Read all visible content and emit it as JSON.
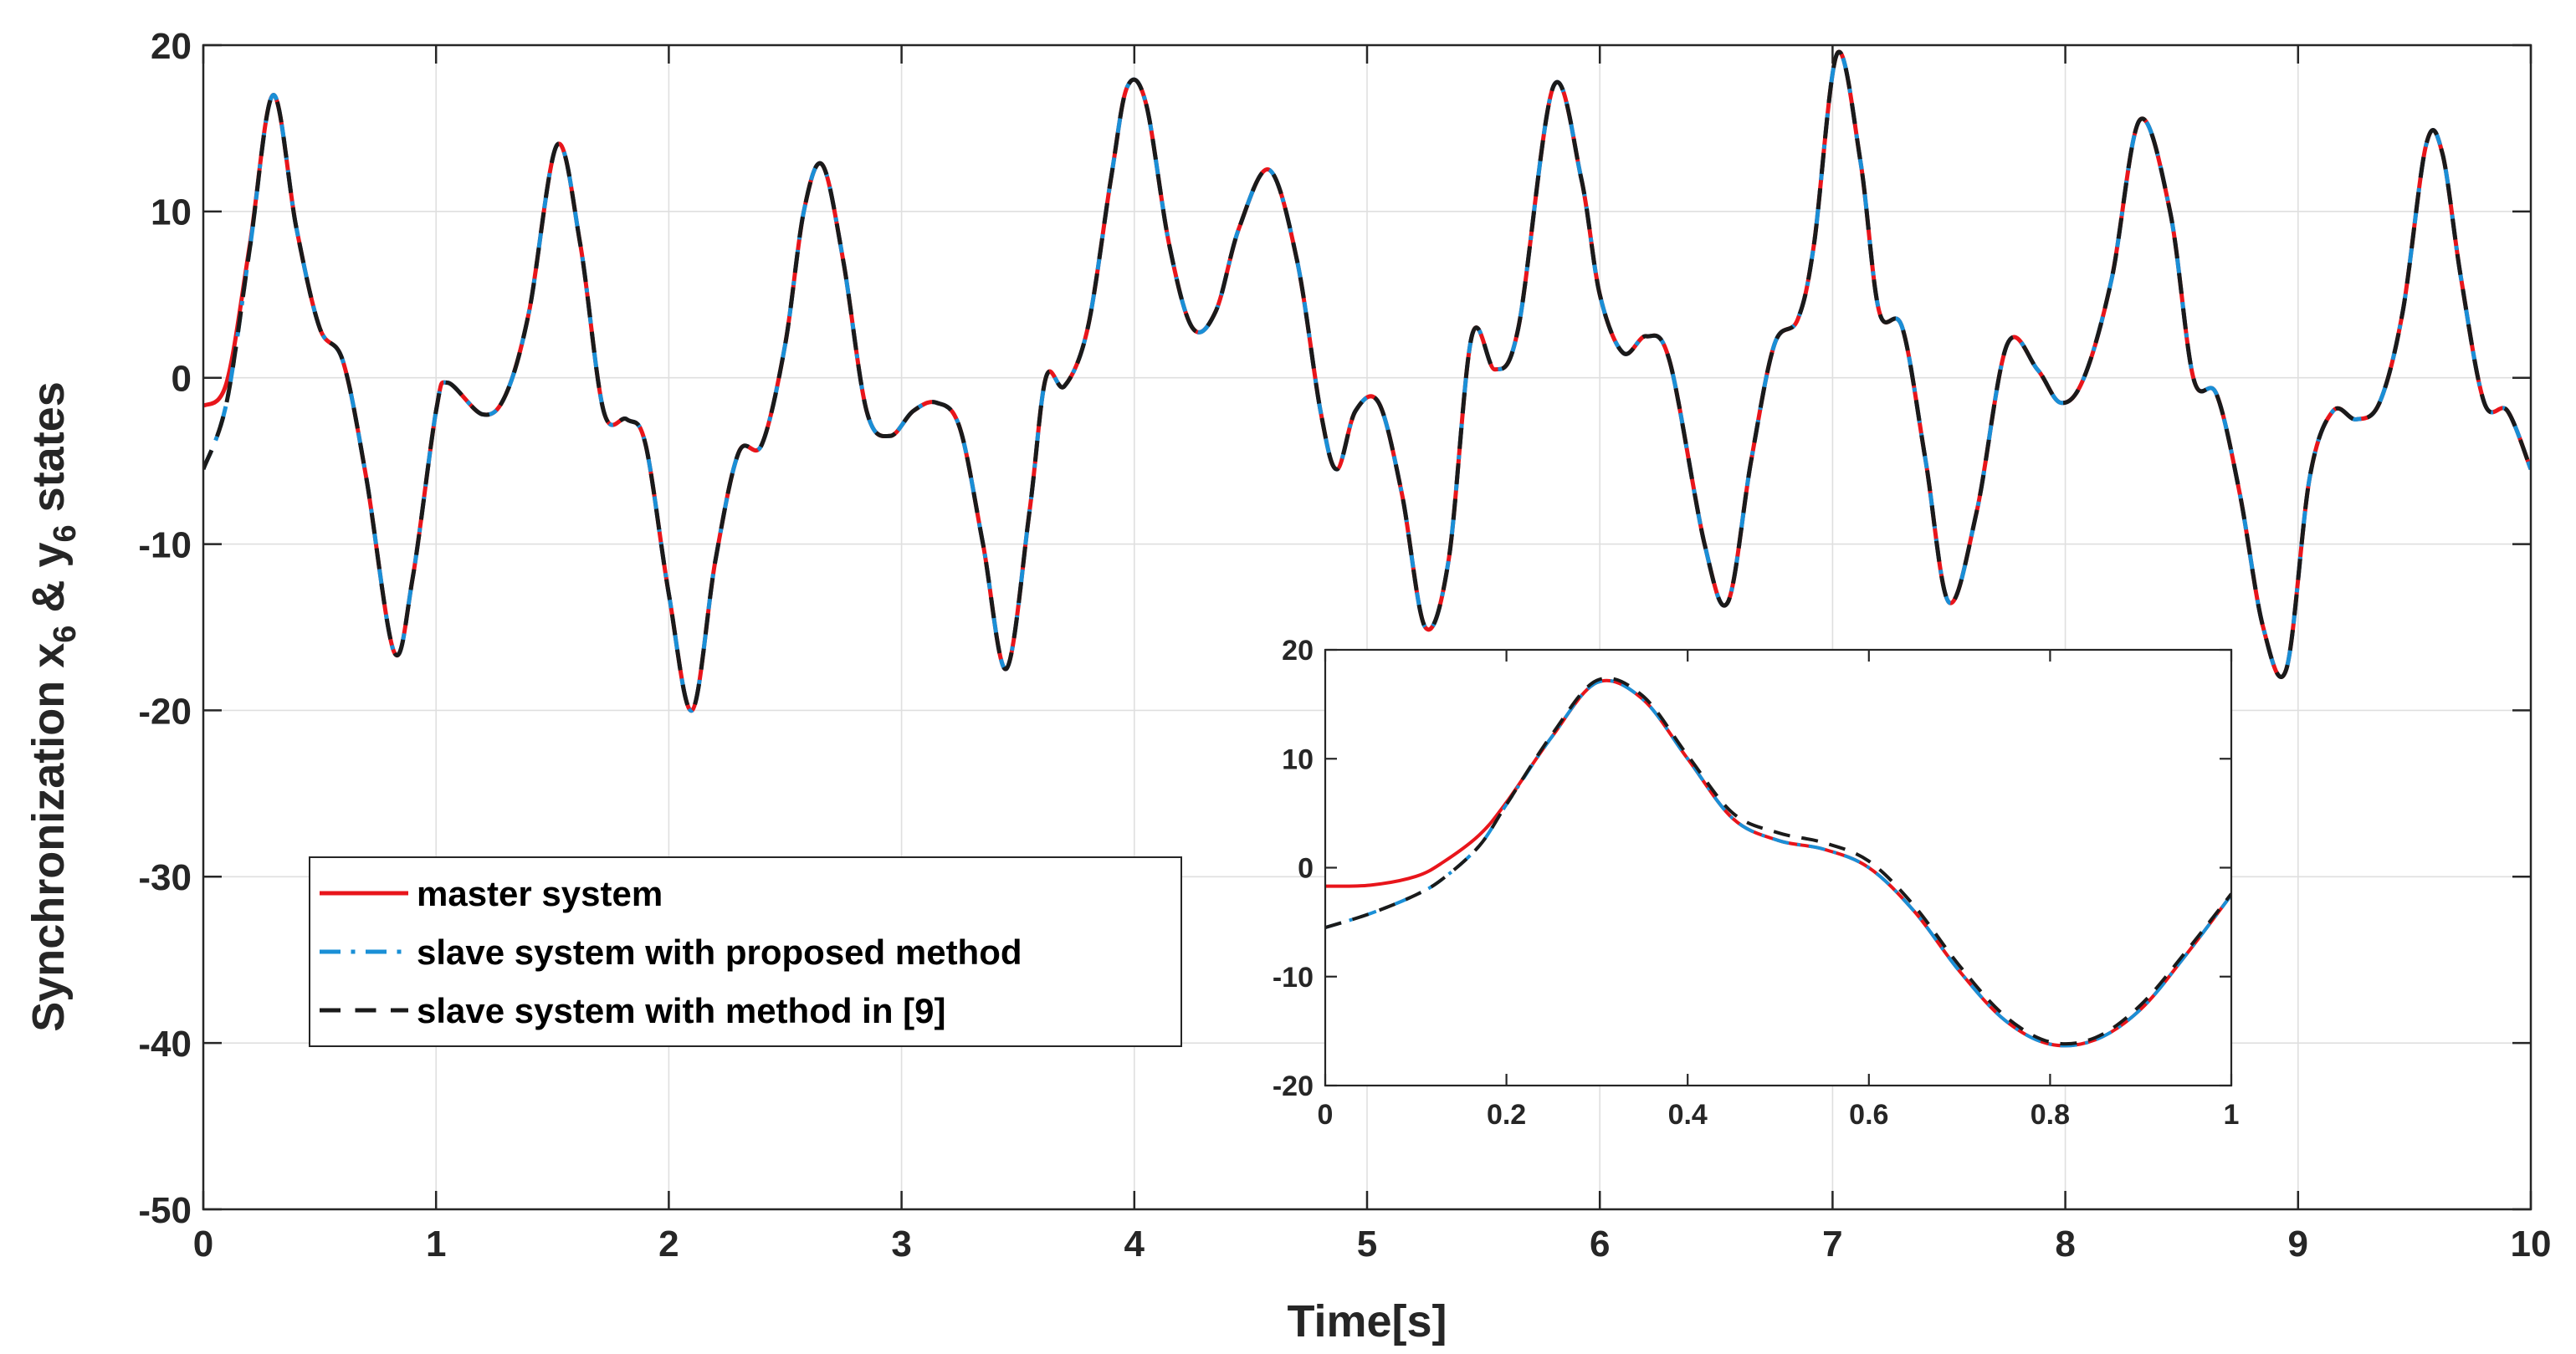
{
  "chart_data": [
    {
      "type": "line",
      "xlabel": "Time[s]",
      "ylabel": "Synchronization",
      "ylabel_vars": [
        "x",
        "6",
        "&",
        "y",
        "6",
        "states"
      ],
      "xlim": [
        0,
        10
      ],
      "ylim": [
        -50,
        20
      ],
      "xticks": [
        0,
        1,
        2,
        3,
        4,
        5,
        6,
        7,
        8,
        9,
        10
      ],
      "yticks": [
        -50,
        -40,
        -30,
        -20,
        -10,
        0,
        10,
        20
      ],
      "xtick_labels": [
        "0",
        "1",
        "2",
        "3",
        "4",
        "5",
        "6",
        "7",
        "8",
        "9",
        "10"
      ],
      "ytick_labels": [
        "-50",
        "-40",
        "-30",
        "-20",
        "-10",
        "0",
        "10",
        "20"
      ],
      "grid": true,
      "legend_position": "lower-left",
      "series": [
        {
          "name": "master system",
          "color": "#e8151b",
          "style": "solid",
          "x": [
            0,
            0.1,
            0.2,
            0.3,
            0.4,
            0.5,
            0.6,
            0.7,
            0.82,
            0.9,
            1.0,
            1.05,
            1.2,
            1.3,
            1.4,
            1.52,
            1.62,
            1.72,
            1.82,
            1.9,
            2.0,
            2.1,
            2.2,
            2.3,
            2.4,
            2.5,
            2.58,
            2.66,
            2.75,
            2.85,
            2.95,
            3.05,
            3.15,
            3.25,
            3.35,
            3.45,
            3.55,
            3.62,
            3.7,
            3.8,
            3.9,
            3.97,
            4.05,
            4.15,
            4.25,
            4.35,
            4.45,
            4.58,
            4.7,
            4.8,
            4.87,
            4.95,
            5.05,
            5.15,
            5.25,
            5.35,
            5.45,
            5.55,
            5.65,
            5.8,
            5.92,
            6.0,
            6.1,
            6.2,
            6.3,
            6.45,
            6.55,
            6.65,
            6.75,
            6.85,
            6.92,
            7.02,
            7.12,
            7.2,
            7.3,
            7.4,
            7.5,
            7.62,
            7.75,
            7.88,
            7.98,
            8.08,
            8.2,
            8.32,
            8.45,
            8.55,
            8.65,
            8.75,
            8.85,
            8.95,
            9.05,
            9.15,
            9.25,
            9.35,
            9.45,
            9.55,
            9.62,
            9.7,
            9.8,
            9.9,
            10.0
          ],
          "values": [
            -1.7,
            -0.3,
            8.0,
            17.0,
            9.0,
            3.0,
            1.0,
            -6.0,
            -16.5,
            -12.0,
            -2.0,
            -0.3,
            -2.2,
            -1.0,
            4.0,
            14.0,
            8.0,
            -2.0,
            -2.5,
            -4.0,
            -13.0,
            -20.0,
            -11.0,
            -4.5,
            -4.0,
            2.0,
            10.0,
            12.8,
            7.0,
            -2.0,
            -3.5,
            -2.0,
            -1.5,
            -3.0,
            -10.0,
            -17.5,
            -8.0,
            0.0,
            -0.5,
            3.0,
            12.0,
            17.5,
            16.5,
            8.0,
            3.0,
            4.0,
            9.0,
            12.5,
            7.0,
            -2.0,
            -5.5,
            -2.0,
            -1.5,
            -7.0,
            -15.0,
            -11.0,
            2.5,
            0.5,
            3.0,
            17.5,
            12.0,
            5.0,
            1.5,
            2.5,
            1.0,
            -10.0,
            -13.5,
            -5.0,
            2.0,
            3.5,
            8.0,
            19.5,
            13.0,
            4.0,
            3.0,
            -5.0,
            -13.5,
            -8.0,
            2.0,
            0.5,
            -1.5,
            0.0,
            6.0,
            15.5,
            10.0,
            0.0,
            -1.0,
            -7.0,
            -15.0,
            -17.5,
            -6.0,
            -2.0,
            -2.5,
            -1.5,
            4.0,
            14.0,
            13.5,
            6.0,
            -1.5,
            -2.0,
            -5.5
          ]
        },
        {
          "name": "slave system with proposed method",
          "color": "#1a8fd6",
          "style": "dashdot",
          "x": [
            0,
            0.1,
            0.2,
            0.3,
            0.4,
            0.5,
            0.6,
            0.7,
            0.82,
            0.9,
            1.0,
            1.05,
            1.2,
            1.3,
            1.4,
            1.52,
            1.62,
            1.72,
            1.82,
            1.9,
            2.0,
            2.1,
            2.2,
            2.3,
            2.4,
            2.5,
            2.58,
            2.66,
            2.75,
            2.85,
            2.95,
            3.05,
            3.15,
            3.25,
            3.35,
            3.45,
            3.55,
            3.62,
            3.7,
            3.8,
            3.9,
            3.97,
            4.05,
            4.15,
            4.25,
            4.35,
            4.45,
            4.58,
            4.7,
            4.8,
            4.87,
            4.95,
            5.05,
            5.15,
            5.25,
            5.35,
            5.45,
            5.55,
            5.65,
            5.8,
            5.92,
            6.0,
            6.1,
            6.2,
            6.3,
            6.45,
            6.55,
            6.65,
            6.75,
            6.85,
            6.92,
            7.02,
            7.12,
            7.2,
            7.3,
            7.4,
            7.5,
            7.62,
            7.75,
            7.88,
            7.98,
            8.08,
            8.2,
            8.32,
            8.45,
            8.55,
            8.65,
            8.75,
            8.85,
            8.95,
            9.05,
            9.15,
            9.25,
            9.35,
            9.45,
            9.55,
            9.62,
            9.7,
            9.8,
            9.9,
            10.0
          ],
          "values": [
            -5.5,
            -1.5,
            7.8,
            17.0,
            9.0,
            3.0,
            1.0,
            -6.0,
            -16.5,
            -12.0,
            -2.0,
            -0.3,
            -2.2,
            -1.0,
            4.0,
            14.0,
            8.0,
            -2.0,
            -2.5,
            -4.0,
            -13.0,
            -20.0,
            -11.0,
            -4.5,
            -4.0,
            2.0,
            10.0,
            12.8,
            7.0,
            -2.0,
            -3.5,
            -2.0,
            -1.5,
            -3.0,
            -10.0,
            -17.5,
            -8.0,
            0.0,
            -0.5,
            3.0,
            12.0,
            17.5,
            16.5,
            8.0,
            3.0,
            4.0,
            9.0,
            12.5,
            7.0,
            -2.0,
            -5.5,
            -2.0,
            -1.5,
            -7.0,
            -15.0,
            -11.0,
            2.5,
            0.5,
            3.0,
            17.5,
            12.0,
            5.0,
            1.5,
            2.5,
            1.0,
            -10.0,
            -13.5,
            -5.0,
            2.0,
            3.5,
            8.0,
            19.5,
            13.0,
            4.0,
            3.0,
            -5.0,
            -13.5,
            -8.0,
            2.0,
            0.5,
            -1.5,
            0.0,
            6.0,
            15.5,
            10.0,
            0.0,
            -1.0,
            -7.0,
            -15.0,
            -17.5,
            -6.0,
            -2.0,
            -2.5,
            -1.5,
            4.0,
            14.0,
            13.5,
            6.0,
            -1.5,
            -2.0,
            -5.5
          ]
        },
        {
          "name": "slave system with method in [9]",
          "color": "#1a1a1a",
          "style": "dashed",
          "x": [
            0,
            0.1,
            0.2,
            0.3,
            0.4,
            0.5,
            0.6,
            0.7,
            0.82,
            0.9,
            1.0,
            1.05,
            1.2,
            1.3,
            1.4,
            1.52,
            1.62,
            1.72,
            1.82,
            1.9,
            2.0,
            2.1,
            2.2,
            2.3,
            2.4,
            2.5,
            2.58,
            2.66,
            2.75,
            2.85,
            2.95,
            3.05,
            3.15,
            3.25,
            3.35,
            3.45,
            3.55,
            3.62,
            3.7,
            3.8,
            3.9,
            3.97,
            4.05,
            4.15,
            4.25,
            4.35,
            4.45,
            4.58,
            4.7,
            4.8,
            4.87,
            4.95,
            5.05,
            5.15,
            5.25,
            5.35,
            5.45,
            5.55,
            5.65,
            5.8,
            5.92,
            6.0,
            6.1,
            6.2,
            6.3,
            6.45,
            6.55,
            6.65,
            6.75,
            6.85,
            6.92,
            7.02,
            7.12,
            7.2,
            7.3,
            7.4,
            7.5,
            7.62,
            7.75,
            7.88,
            7.98,
            8.08,
            8.2,
            8.32,
            8.45,
            8.55,
            8.65,
            8.75,
            8.85,
            8.95,
            9.05,
            9.15,
            9.25,
            9.35,
            9.45,
            9.55,
            9.62,
            9.7,
            9.8,
            9.9,
            10.0
          ],
          "values": [
            -5.5,
            -1.5,
            7.8,
            17.0,
            9.0,
            3.0,
            1.0,
            -6.0,
            -16.5,
            -12.0,
            -2.0,
            -0.3,
            -2.2,
            -1.0,
            4.0,
            14.0,
            8.0,
            -2.0,
            -2.5,
            -4.0,
            -13.0,
            -20.0,
            -11.0,
            -4.5,
            -4.0,
            2.0,
            10.0,
            12.8,
            7.0,
            -2.0,
            -3.5,
            -2.0,
            -1.5,
            -3.0,
            -10.0,
            -17.5,
            -8.0,
            0.0,
            -0.5,
            3.0,
            12.0,
            17.5,
            16.5,
            8.0,
            3.0,
            4.0,
            9.0,
            12.5,
            7.0,
            -2.0,
            -5.5,
            -2.0,
            -1.5,
            -7.0,
            -15.0,
            -11.0,
            2.5,
            0.5,
            3.0,
            17.5,
            12.0,
            5.0,
            1.5,
            2.5,
            1.0,
            -10.0,
            -13.5,
            -5.0,
            2.0,
            3.5,
            8.0,
            19.5,
            13.0,
            4.0,
            3.0,
            -5.0,
            -13.5,
            -8.0,
            2.0,
            0.5,
            -1.5,
            0.0,
            6.0,
            15.5,
            10.0,
            0.0,
            -1.0,
            -7.0,
            -15.0,
            -17.5,
            -6.0,
            -2.0,
            -2.5,
            -1.5,
            4.0,
            14.0,
            13.5,
            6.0,
            -1.5,
            -2.0,
            -5.5
          ]
        }
      ]
    },
    {
      "type": "line",
      "role": "inset",
      "xlim": [
        0,
        1
      ],
      "ylim": [
        -20,
        20
      ],
      "xticks": [
        0,
        0.2,
        0.4,
        0.6,
        0.8,
        1
      ],
      "yticks": [
        -20,
        -10,
        0,
        10,
        20
      ],
      "xtick_labels": [
        "0",
        "0.2",
        "0.4",
        "0.6",
        "0.8",
        "1"
      ],
      "ytick_labels": [
        "-20",
        "-10",
        "0",
        "10",
        "20"
      ],
      "grid": false,
      "series": [
        {
          "name": "master system",
          "color": "#e8151b",
          "style": "solid",
          "x": [
            0,
            0.05,
            0.1,
            0.13,
            0.17,
            0.2,
            0.25,
            0.3,
            0.35,
            0.4,
            0.45,
            0.5,
            0.55,
            0.6,
            0.65,
            0.7,
            0.75,
            0.8,
            0.85,
            0.9,
            0.95,
            1.0
          ],
          "values": [
            -1.7,
            -1.6,
            -0.8,
            0.5,
            3.0,
            6.0,
            12.0,
            17.0,
            15.5,
            10.0,
            4.5,
            2.5,
            1.7,
            0.0,
            -4.0,
            -9.5,
            -14.0,
            -16.2,
            -15.8,
            -13.0,
            -8.0,
            -2.5
          ]
        },
        {
          "name": "slave system with proposed method",
          "color": "#1a8fd6",
          "style": "dashdot",
          "x": [
            0,
            0.05,
            0.1,
            0.13,
            0.17,
            0.2,
            0.25,
            0.3,
            0.35,
            0.4,
            0.45,
            0.5,
            0.55,
            0.6,
            0.65,
            0.7,
            0.75,
            0.8,
            0.85,
            0.9,
            0.95,
            1.0
          ],
          "values": [
            -5.5,
            -4.2,
            -2.5,
            -1.0,
            2.0,
            5.8,
            12.0,
            17.0,
            15.5,
            10.0,
            4.5,
            2.5,
            1.7,
            0.0,
            -4.0,
            -9.5,
            -14.0,
            -16.2,
            -15.8,
            -13.0,
            -8.0,
            -2.5
          ]
        },
        {
          "name": "slave system with method in [9]",
          "color": "#1a1a1a",
          "style": "dashed",
          "x": [
            0,
            0.05,
            0.1,
            0.13,
            0.17,
            0.2,
            0.25,
            0.3,
            0.35,
            0.4,
            0.45,
            0.5,
            0.55,
            0.6,
            0.65,
            0.7,
            0.75,
            0.8,
            0.85,
            0.9,
            0.95,
            1.0
          ],
          "values": [
            -5.5,
            -4.2,
            -2.5,
            -1.0,
            2.0,
            5.8,
            12.2,
            17.2,
            15.8,
            10.3,
            5.0,
            3.2,
            2.3,
            0.6,
            -3.5,
            -9.0,
            -13.6,
            -16.0,
            -15.6,
            -12.6,
            -7.7,
            -2.4
          ]
        }
      ]
    }
  ]
}
